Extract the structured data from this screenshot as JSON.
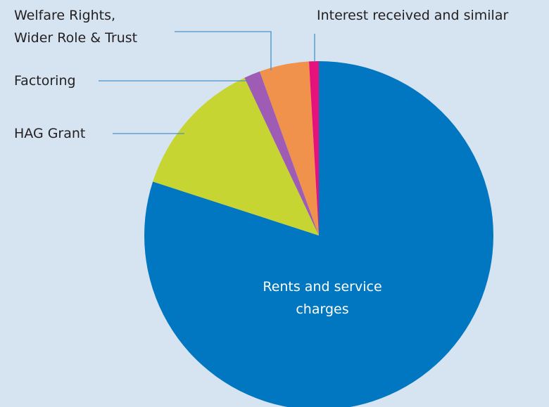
{
  "chart_data": {
    "type": "pie",
    "categories": [
      "Rents and service\ncharges",
      "HAG Grant",
      "Factoring",
      "Welfare Rights,\nWider Role & Trust",
      "Interest received and similar"
    ],
    "values": [
      80,
      13,
      1.5,
      4.6,
      0.9
    ],
    "colors": [
      "#0077c0",
      "#c6d531",
      "#9e5cb4",
      "#f0924b",
      "#e5127c"
    ],
    "start_angle": 0,
    "direction": "clockwise"
  }
}
